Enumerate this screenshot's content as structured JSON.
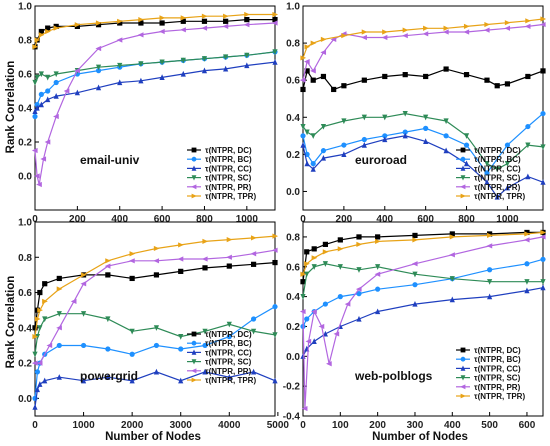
{
  "figure": {
    "y_axis_label": "Rank Correlation",
    "x_axis_label": "Number of Nodes"
  },
  "chart_data": [
    {
      "type": "line",
      "title": "email-univ",
      "xlabel": "",
      "ylabel": "Rank Correlation",
      "xlim": [
        0,
        1133
      ],
      "ylim": [
        -0.2,
        1.0
      ],
      "xticks": [
        0,
        200,
        400,
        600,
        800,
        1000
      ],
      "yticks": [
        0.0,
        0.2,
        0.4,
        0.6,
        0.8,
        1.0
      ],
      "grid": false,
      "legend_position": "bottom-right",
      "series": [
        {
          "name": "τ(NTPR, DC)",
          "color": "#000000",
          "marker": "square",
          "x": [
            0,
            10,
            30,
            60,
            100,
            200,
            300,
            400,
            500,
            600,
            700,
            800,
            900,
            1000,
            1133
          ],
          "y": [
            0.76,
            0.8,
            0.85,
            0.87,
            0.88,
            0.88,
            0.89,
            0.9,
            0.9,
            0.9,
            0.91,
            0.91,
            0.91,
            0.92,
            0.92
          ]
        },
        {
          "name": "τ(NTPR, BC)",
          "color": "#1e90ff",
          "marker": "circle",
          "x": [
            0,
            10,
            30,
            60,
            100,
            200,
            300,
            400,
            500,
            600,
            700,
            800,
            900,
            1000,
            1133
          ],
          "y": [
            0.35,
            0.42,
            0.48,
            0.5,
            0.55,
            0.6,
            0.62,
            0.64,
            0.66,
            0.67,
            0.68,
            0.69,
            0.7,
            0.71,
            0.73
          ]
        },
        {
          "name": "τ(NTPR, CC)",
          "color": "#1f3fbf",
          "marker": "triangle-up",
          "x": [
            0,
            10,
            30,
            60,
            100,
            200,
            300,
            400,
            500,
            600,
            700,
            800,
            900,
            1000,
            1133
          ],
          "y": [
            0.38,
            0.4,
            0.42,
            0.45,
            0.47,
            0.49,
            0.52,
            0.55,
            0.56,
            0.58,
            0.6,
            0.62,
            0.63,
            0.65,
            0.67
          ]
        },
        {
          "name": "τ(NTPR, SC)",
          "color": "#2e8b57",
          "marker": "triangle-down",
          "x": [
            0,
            10,
            30,
            60,
            100,
            200,
            300,
            400,
            500,
            600,
            700,
            800,
            900,
            1000,
            1133
          ],
          "y": [
            0.55,
            0.58,
            0.6,
            0.58,
            0.6,
            0.62,
            0.64,
            0.65,
            0.66,
            0.67,
            0.68,
            0.69,
            0.7,
            0.71,
            0.73
          ]
        },
        {
          "name": "τ(NTPR, PR)",
          "color": "#b266e0",
          "marker": "triangle-left",
          "x": [
            0,
            10,
            20,
            40,
            60,
            100,
            150,
            200,
            300,
            400,
            500,
            600,
            700,
            800,
            900,
            1000,
            1133
          ],
          "y": [
            0.15,
            0.0,
            -0.05,
            0.1,
            0.2,
            0.35,
            0.5,
            0.62,
            0.75,
            0.8,
            0.83,
            0.85,
            0.86,
            0.87,
            0.88,
            0.89,
            0.9
          ]
        },
        {
          "name": "τ(NTPR, TPR)",
          "color": "#e8a317",
          "marker": "triangle-right",
          "x": [
            0,
            10,
            30,
            60,
            100,
            200,
            300,
            400,
            500,
            600,
            700,
            800,
            900,
            1000,
            1133
          ],
          "y": [
            0.76,
            0.8,
            0.83,
            0.85,
            0.87,
            0.89,
            0.9,
            0.91,
            0.92,
            0.93,
            0.93,
            0.94,
            0.94,
            0.95,
            0.95
          ]
        }
      ]
    },
    {
      "type": "line",
      "title": "euroroad",
      "xlabel": "",
      "ylabel": "",
      "xlim": [
        0,
        1174
      ],
      "ylim": [
        -0.1,
        1.0
      ],
      "xticks": [
        0,
        200,
        400,
        600,
        800,
        1000
      ],
      "yticks": [
        0.0,
        0.2,
        0.4,
        0.6,
        0.8,
        1.0
      ],
      "grid": false,
      "legend_position": "bottom-right",
      "series": [
        {
          "name": "τ(NTPR, DC)",
          "color": "#000000",
          "marker": "square",
          "x": [
            0,
            20,
            50,
            100,
            150,
            200,
            300,
            400,
            500,
            600,
            700,
            800,
            900,
            950,
            1000,
            1100,
            1174
          ],
          "y": [
            0.55,
            0.65,
            0.6,
            0.62,
            0.55,
            0.57,
            0.6,
            0.62,
            0.63,
            0.62,
            0.66,
            0.63,
            0.6,
            0.57,
            0.58,
            0.62,
            0.65
          ]
        },
        {
          "name": "τ(NTPR, BC)",
          "color": "#1e90ff",
          "marker": "circle",
          "x": [
            0,
            20,
            50,
            100,
            200,
            300,
            400,
            500,
            600,
            700,
            800,
            900,
            1000,
            1100,
            1174
          ],
          "y": [
            0.3,
            0.2,
            0.15,
            0.22,
            0.25,
            0.28,
            0.3,
            0.32,
            0.34,
            0.3,
            0.25,
            0.1,
            0.25,
            0.35,
            0.42
          ]
        },
        {
          "name": "τ(NTPR, CC)",
          "color": "#1f3fbf",
          "marker": "triangle-up",
          "x": [
            0,
            20,
            50,
            100,
            200,
            300,
            400,
            500,
            600,
            700,
            800,
            900,
            950,
            1000,
            1100,
            1174
          ],
          "y": [
            0.25,
            0.15,
            0.12,
            0.18,
            0.2,
            0.25,
            0.28,
            0.3,
            0.27,
            0.22,
            0.15,
            0.05,
            -0.03,
            0.02,
            0.08,
            0.05
          ]
        },
        {
          "name": "τ(NTPR, SC)",
          "color": "#2e8b57",
          "marker": "triangle-down",
          "x": [
            0,
            20,
            50,
            100,
            200,
            300,
            400,
            500,
            600,
            700,
            800,
            900,
            950,
            1000,
            1100,
            1174
          ],
          "y": [
            0.35,
            0.32,
            0.3,
            0.35,
            0.38,
            0.4,
            0.4,
            0.42,
            0.4,
            0.38,
            0.3,
            0.15,
            0.12,
            0.15,
            0.25,
            0.24
          ]
        },
        {
          "name": "τ(NTPR, PR)",
          "color": "#b266e0",
          "marker": "triangle-left",
          "x": [
            0,
            20,
            50,
            100,
            150,
            200,
            300,
            400,
            500,
            600,
            700,
            800,
            900,
            1000,
            1100,
            1174
          ],
          "y": [
            0.6,
            0.7,
            0.65,
            0.75,
            0.82,
            0.85,
            0.83,
            0.83,
            0.84,
            0.85,
            0.86,
            0.86,
            0.87,
            0.88,
            0.89,
            0.9
          ]
        },
        {
          "name": "τ(NTPR, TPR)",
          "color": "#e8a317",
          "marker": "triangle-right",
          "x": [
            0,
            20,
            50,
            100,
            200,
            300,
            400,
            500,
            600,
            700,
            800,
            900,
            1000,
            1100,
            1174
          ],
          "y": [
            0.72,
            0.78,
            0.8,
            0.82,
            0.84,
            0.86,
            0.86,
            0.87,
            0.88,
            0.88,
            0.89,
            0.9,
            0.91,
            0.92,
            0.93
          ]
        }
      ]
    },
    {
      "type": "line",
      "title": "powergrid",
      "xlabel": "Number of Nodes",
      "ylabel": "Rank Correlation",
      "xlim": [
        0,
        4941
      ],
      "ylim": [
        -0.1,
        1.0
      ],
      "xticks": [
        0,
        1000,
        2000,
        3000,
        4000,
        5000
      ],
      "yticks": [
        0.0,
        0.2,
        0.4,
        0.6,
        0.8,
        1.0
      ],
      "grid": false,
      "legend_position": "bottom-right",
      "series": [
        {
          "name": "τ(NTPR, DC)",
          "color": "#000000",
          "marker": "square",
          "x": [
            0,
            50,
            100,
            200,
            500,
            1000,
            1500,
            2000,
            2500,
            3000,
            3500,
            4000,
            4500,
            4941
          ],
          "y": [
            0.4,
            0.5,
            0.6,
            0.65,
            0.68,
            0.7,
            0.7,
            0.68,
            0.7,
            0.72,
            0.74,
            0.75,
            0.76,
            0.77
          ]
        },
        {
          "name": "τ(NTPR, BC)",
          "color": "#1e90ff",
          "marker": "circle",
          "x": [
            0,
            50,
            100,
            200,
            500,
            1000,
            1500,
            2000,
            2500,
            3000,
            3500,
            4000,
            4500,
            4941
          ],
          "y": [
            0.0,
            0.15,
            0.2,
            0.25,
            0.3,
            0.3,
            0.28,
            0.25,
            0.3,
            0.28,
            0.3,
            0.35,
            0.45,
            0.52
          ]
        },
        {
          "name": "τ(NTPR, CC)",
          "color": "#1f3fbf",
          "marker": "triangle-up",
          "x": [
            0,
            50,
            100,
            200,
            500,
            1000,
            1500,
            2000,
            2500,
            3000,
            3500,
            4000,
            4500,
            4941
          ],
          "y": [
            -0.05,
            0.05,
            0.08,
            0.1,
            0.12,
            0.1,
            0.12,
            0.1,
            0.15,
            0.1,
            0.15,
            0.12,
            0.15,
            0.1
          ]
        },
        {
          "name": "τ(NTPR, SC)",
          "color": "#2e8b57",
          "marker": "triangle-down",
          "x": [
            0,
            50,
            100,
            200,
            500,
            1000,
            1500,
            2000,
            2500,
            3000,
            3500,
            4000,
            4500,
            4941
          ],
          "y": [
            0.25,
            0.35,
            0.4,
            0.45,
            0.48,
            0.48,
            0.45,
            0.38,
            0.4,
            0.35,
            0.38,
            0.42,
            0.38,
            0.36
          ]
        },
        {
          "name": "τ(NTPR, PR)",
          "color": "#b266e0",
          "marker": "triangle-left",
          "x": [
            0,
            100,
            300,
            500,
            800,
            1000,
            1500,
            2000,
            2500,
            3000,
            3500,
            4000,
            4500,
            4941
          ],
          "y": [
            0.2,
            0.2,
            0.3,
            0.4,
            0.55,
            0.65,
            0.75,
            0.78,
            0.78,
            0.79,
            0.79,
            0.8,
            0.82,
            0.84
          ]
        },
        {
          "name": "τ(NTPR, TPR)",
          "color": "#e8a317",
          "marker": "triangle-right",
          "x": [
            0,
            50,
            100,
            200,
            500,
            1000,
            1500,
            2000,
            2500,
            3000,
            3500,
            4000,
            4500,
            4941
          ],
          "y": [
            0.35,
            0.45,
            0.5,
            0.55,
            0.62,
            0.7,
            0.78,
            0.82,
            0.85,
            0.87,
            0.89,
            0.9,
            0.91,
            0.92
          ]
        }
      ]
    },
    {
      "type": "line",
      "title": "web-polblogs",
      "xlabel": "Number of Nodes",
      "ylabel": "",
      "xlim": [
        0,
        643
      ],
      "ylim": [
        -0.4,
        0.9
      ],
      "xticks": [
        0,
        100,
        200,
        300,
        400,
        500,
        600
      ],
      "yticks": [
        -0.4,
        -0.2,
        0.0,
        0.2,
        0.4,
        0.6,
        0.8
      ],
      "grid": false,
      "legend_position": "bottom-right",
      "series": [
        {
          "name": "τ(NTPR, DC)",
          "color": "#000000",
          "marker": "square",
          "x": [
            0,
            10,
            30,
            60,
            100,
            150,
            200,
            300,
            400,
            500,
            600,
            643
          ],
          "y": [
            0.5,
            0.7,
            0.72,
            0.75,
            0.78,
            0.8,
            0.8,
            0.81,
            0.82,
            0.82,
            0.83,
            0.83
          ]
        },
        {
          "name": "τ(NTPR, BC)",
          "color": "#1e90ff",
          "marker": "circle",
          "x": [
            0,
            10,
            30,
            60,
            100,
            150,
            200,
            300,
            400,
            500,
            600,
            643
          ],
          "y": [
            0.2,
            0.25,
            0.3,
            0.35,
            0.4,
            0.42,
            0.45,
            0.48,
            0.52,
            0.58,
            0.62,
            0.65
          ]
        },
        {
          "name": "τ(NTPR, CC)",
          "color": "#1f3fbf",
          "marker": "triangle-up",
          "x": [
            0,
            10,
            30,
            60,
            100,
            150,
            200,
            300,
            400,
            500,
            600,
            643
          ],
          "y": [
            0.0,
            0.05,
            0.1,
            0.15,
            0.2,
            0.25,
            0.3,
            0.35,
            0.38,
            0.4,
            0.44,
            0.46
          ]
        },
        {
          "name": "τ(NTPR, SC)",
          "color": "#2e8b57",
          "marker": "triangle-down",
          "x": [
            0,
            10,
            30,
            60,
            100,
            150,
            200,
            300,
            400,
            500,
            600,
            643
          ],
          "y": [
            0.4,
            0.55,
            0.6,
            0.62,
            0.6,
            0.58,
            0.6,
            0.55,
            0.52,
            0.5,
            0.5,
            0.5
          ]
        },
        {
          "name": "τ(NTPR, PR)",
          "color": "#b266e0",
          "marker": "triangle-left",
          "x": [
            0,
            5,
            15,
            30,
            50,
            70,
            90,
            120,
            150,
            200,
            300,
            400,
            500,
            600,
            643
          ],
          "y": [
            0.3,
            -0.35,
            0.1,
            0.3,
            0.2,
            -0.05,
            0.15,
            0.35,
            0.45,
            0.55,
            0.62,
            0.68,
            0.74,
            0.78,
            0.8
          ]
        },
        {
          "name": "τ(NTPR, TPR)",
          "color": "#e8a317",
          "marker": "triangle-right",
          "x": [
            0,
            10,
            30,
            60,
            100,
            150,
            200,
            300,
            400,
            500,
            600,
            643
          ],
          "y": [
            0.55,
            0.62,
            0.66,
            0.7,
            0.72,
            0.75,
            0.77,
            0.78,
            0.8,
            0.81,
            0.82,
            0.83
          ]
        }
      ]
    }
  ]
}
